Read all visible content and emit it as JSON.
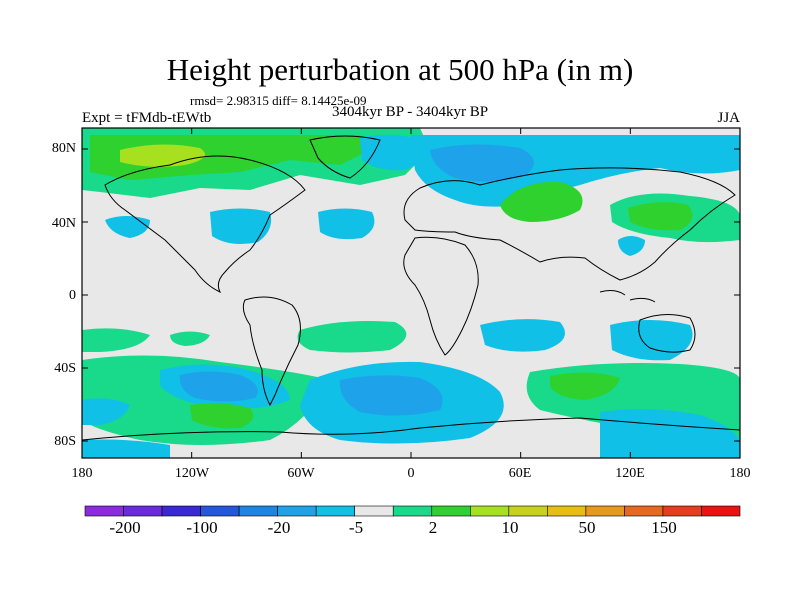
{
  "title": "Height perturbation at 500 hPa (in m)",
  "stats": "rmsd= 2.98315 diff= 8.14425e-09",
  "experiment": "Expt = tFMdb-tEWtb",
  "period": "3404kyr BP - 3404kyr BP",
  "season": "JJA",
  "lat_ticks": [
    "80N",
    "40N",
    "0",
    "40S",
    "80S"
  ],
  "lon_ticks": [
    "180",
    "120W",
    "60W",
    "0",
    "60E",
    "120E",
    "180"
  ],
  "colorbar": {
    "colors": [
      "#8a2be2",
      "#6a2ae0",
      "#3a28d8",
      "#2456e0",
      "#1c86e6",
      "#1ea2ea",
      "#10c0e6",
      "#e8e8e8",
      "#19d98a",
      "#2ed12e",
      "#a6e01e",
      "#c8d21c",
      "#e6bf14",
      "#e8981a",
      "#e8681e",
      "#e83c1e",
      "#e81414"
    ],
    "labels": [
      "-200",
      "-100",
      "-20",
      "-5",
      "2",
      "10",
      "50",
      "150"
    ]
  },
  "map_colors": {
    "background": "#e8e8e8",
    "neg_light": "#10c0e6",
    "neg_mid": "#1ea2ea",
    "pos_light": "#19d98a",
    "pos_mid": "#2ed12e",
    "pos_strong": "#a6e01e"
  }
}
